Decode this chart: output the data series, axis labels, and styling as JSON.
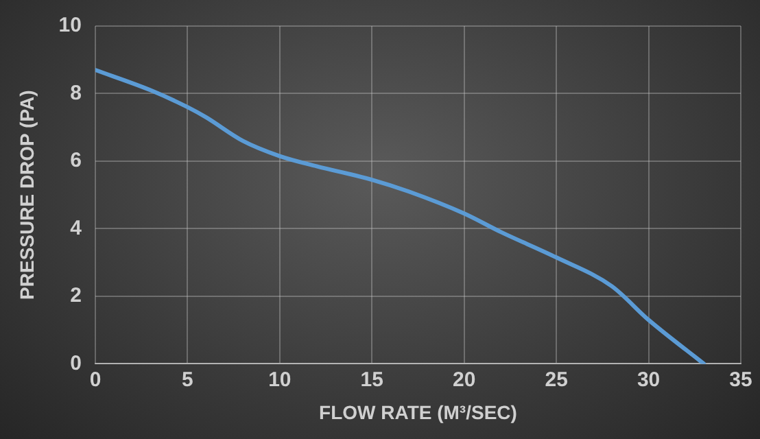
{
  "chart_data": {
    "type": "line",
    "xlabel": "FLOW RATE (M³/SEC)",
    "ylabel": "PRESSURE DROP (PA)",
    "x": [
      0,
      3,
      5,
      6,
      8,
      10,
      12,
      15,
      17,
      20,
      22,
      25,
      28,
      30,
      33
    ],
    "series": [
      {
        "color": "#5b9bd5",
        "values": [
          8.7,
          8.1,
          7.6,
          7.3,
          6.6,
          6.15,
          5.85,
          5.45,
          5.1,
          4.45,
          3.9,
          3.15,
          2.3,
          1.3,
          0
        ]
      }
    ],
    "xlim": [
      0,
      35
    ],
    "xticks": [
      0,
      5,
      10,
      15,
      20,
      25,
      30,
      35
    ],
    "ylim": [
      0,
      10
    ],
    "yticks": [
      0,
      2,
      4,
      6,
      8,
      10
    ],
    "grid": true,
    "legend": false,
    "marker": "none",
    "line_style": "solid"
  }
}
